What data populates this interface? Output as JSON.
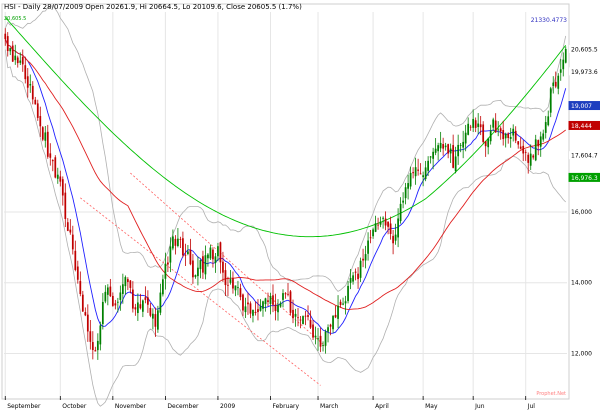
{
  "chart_data": {
    "type": "candlestick",
    "title": "HSI - Daily 28/07/2009 Open 20261.9, Hi 20664.5, Lo 20109.6, Close 20605.5 (1.7%)",
    "top_label": "21330.4773",
    "corner_label": "20,605.5",
    "bottom_label": "Prophet.Net",
    "price_labels": [
      {
        "text": "20,605.5",
        "value": 20605.5,
        "bg": "#ffffff",
        "fg": "#000000"
      },
      {
        "text": "19,973.6",
        "value": 19973.6,
        "bg": "#ffffff",
        "fg": "#000000"
      },
      {
        "text": "19,007",
        "value": 19007,
        "bg": "#1f3fbf",
        "fg": "#ffffff"
      },
      {
        "text": "18,444",
        "value": 18444,
        "bg": "#c00000",
        "fg": "#ffffff"
      },
      {
        "text": "17,604.7",
        "value": 17604.7,
        "bg": "#ffffff",
        "fg": "#000000"
      },
      {
        "text": "16,976.3",
        "value": 16976.3,
        "bg": "#00a000",
        "fg": "#ffffff"
      }
    ],
    "y_ticks": [
      {
        "label": "16,000",
        "value": 16000
      },
      {
        "label": "14,000",
        "value": 14000
      },
      {
        "label": "12,000",
        "value": 12000
      }
    ],
    "x_ticks": [
      {
        "label": "September",
        "index": 0
      },
      {
        "label": "October",
        "index": 22
      },
      {
        "label": "November",
        "index": 43
      },
      {
        "label": "December",
        "index": 64
      },
      {
        "label": "2009",
        "index": 85
      },
      {
        "label": "February",
        "index": 106
      },
      {
        "label": "March",
        "index": 125
      },
      {
        "label": "April",
        "index": 147
      },
      {
        "label": "May",
        "index": 167
      },
      {
        "label": "Jun",
        "index": 187
      },
      {
        "label": "Jul",
        "index": 208
      }
    ],
    "y_range": [
      10800,
      21650
    ],
    "colors": {
      "up": "#008000",
      "down": "#c00000",
      "ma_short": "#2020ff",
      "ma_mid": "#e02020",
      "ma_long": "#00c000",
      "bands": "#b0b0b0",
      "dotted": "#ff6060",
      "grid": "#e6e6e6"
    },
    "anchors": [
      [
        0,
        20900
      ],
      [
        6,
        20100
      ],
      [
        12,
        19000
      ],
      [
        18,
        17500
      ],
      [
        22,
        16600
      ],
      [
        26,
        15300
      ],
      [
        30,
        13700
      ],
      [
        33,
        12600
      ],
      [
        36,
        12000
      ],
      [
        40,
        13900
      ],
      [
        44,
        13100
      ],
      [
        48,
        14300
      ],
      [
        52,
        13200
      ],
      [
        56,
        13500
      ],
      [
        60,
        12800
      ],
      [
        64,
        14600
      ],
      [
        68,
        15300
      ],
      [
        72,
        14900
      ],
      [
        76,
        14200
      ],
      [
        80,
        14600
      ],
      [
        84,
        15000
      ],
      [
        88,
        14100
      ],
      [
        92,
        13800
      ],
      [
        96,
        13200
      ],
      [
        100,
        13000
      ],
      [
        104,
        13600
      ],
      [
        108,
        13300
      ],
      [
        112,
        13700
      ],
      [
        116,
        13000
      ],
      [
        120,
        12900
      ],
      [
        124,
        12500
      ],
      [
        127,
        12200
      ],
      [
        131,
        13000
      ],
      [
        135,
        13600
      ],
      [
        139,
        14000
      ],
      [
        143,
        14500
      ],
      [
        147,
        15500
      ],
      [
        151,
        15800
      ],
      [
        155,
        15300
      ],
      [
        159,
        16200
      ],
      [
        163,
        17200
      ],
      [
        167,
        17000
      ],
      [
        171,
        17500
      ],
      [
        175,
        17800
      ],
      [
        179,
        17500
      ],
      [
        183,
        18200
      ],
      [
        187,
        18600
      ],
      [
        191,
        18000
      ],
      [
        195,
        18400
      ],
      [
        199,
        17900
      ],
      [
        203,
        18400
      ],
      [
        207,
        17900
      ],
      [
        210,
        17500
      ],
      [
        213,
        18000
      ],
      [
        216,
        18600
      ],
      [
        219,
        19600
      ],
      [
        222,
        20200
      ],
      [
        224,
        20605.5
      ]
    ],
    "n_bars": 225,
    "ma_periods": [
      10,
      50,
      250
    ],
    "band_period": 20,
    "band_width": 2.0
  }
}
